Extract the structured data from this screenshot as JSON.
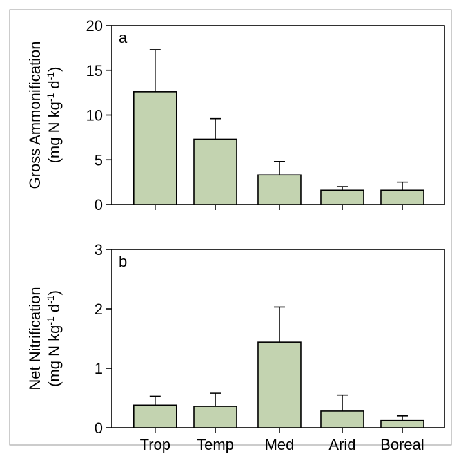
{
  "chart_data": [
    {
      "type": "bar",
      "panel_label": "a",
      "ylabel": "Gross Ammonification",
      "yunit": {
        "pre": "(mg N kg",
        "sup1": "-1",
        "mid": " d",
        "sup2": "-1",
        "post": ")"
      },
      "categories": [
        "Trop",
        "Temp",
        "Med",
        "Arid",
        "Boreal"
      ],
      "values": [
        12.6,
        7.3,
        3.3,
        1.6,
        1.6
      ],
      "errors": [
        4.7,
        2.3,
        1.5,
        0.4,
        0.9
      ],
      "ylim": [
        0,
        20
      ],
      "yticks": [
        "0",
        "5",
        "10",
        "15",
        "20"
      ],
      "bar_color": "#c3d3b0"
    },
    {
      "type": "bar",
      "panel_label": "b",
      "ylabel": "Net Nitrification",
      "yunit": {
        "pre": "(mg N kg",
        "sup1": "-1",
        "mid": " d",
        "sup2": "-1",
        "post": ")"
      },
      "categories": [
        "Trop",
        "Temp",
        "Med",
        "Arid",
        "Boreal"
      ],
      "values": [
        0.38,
        0.36,
        1.44,
        0.28,
        0.12
      ],
      "errors": [
        0.15,
        0.22,
        0.59,
        0.27,
        0.08
      ],
      "ylim": [
        0,
        3
      ],
      "yticks": [
        "0",
        "1",
        "2",
        "3"
      ],
      "bar_color": "#c3d3b0"
    }
  ]
}
